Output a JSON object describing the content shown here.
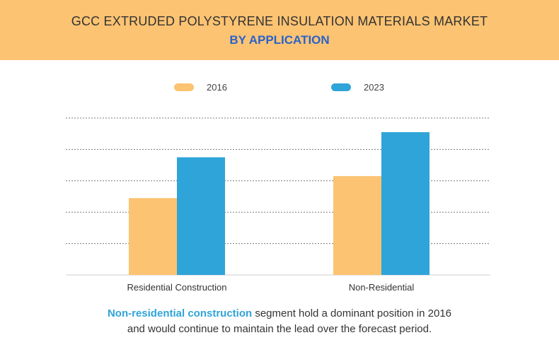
{
  "header": {
    "title": "GCC EXTRUDED POLYSTYRENE INSULATION MATERIALS MARKET",
    "subtitle": "BY APPLICATION"
  },
  "colors": {
    "banner": "#fcc372",
    "series_2016": "#fcc372",
    "series_2023": "#2fa4d9",
    "accent_text": "#2fa4d9"
  },
  "chart_data": {
    "type": "bar",
    "categories": [
      "Residential Construction",
      "Non-Residential"
    ],
    "series": [
      {
        "name": "2016",
        "values": [
          2.45,
          3.15
        ]
      },
      {
        "name": "2023",
        "values": [
          3.75,
          4.55
        ]
      }
    ],
    "ylim": [
      0,
      5
    ],
    "grid": true,
    "legend_position": "top-center",
    "axis_note": "no y-axis tick labels shown"
  },
  "caption": {
    "highlight": "Non-residential construction",
    "line1_rest": " segment hold a dominant position in 2016",
    "line2": "and would continue to maintain the lead over the forecast period."
  }
}
